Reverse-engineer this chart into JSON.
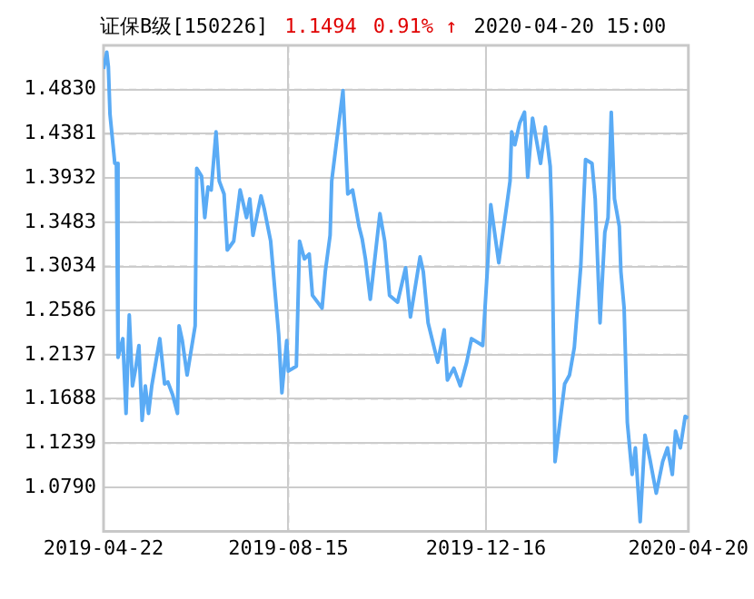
{
  "chart_data": {
    "type": "line",
    "title": "证保B级[150226]",
    "annotations": [
      "1.1494",
      "0.91% ↑",
      "2020-04-20 15:00"
    ],
    "x": [
      "2019-04-22",
      "2019-04-24",
      "2019-04-25",
      "2019-04-26",
      "2019-04-29",
      "2019-04-30",
      "2019-05-01",
      "2019-05-04",
      "2019-05-06",
      "2019-05-08",
      "2019-05-10",
      "2019-05-12",
      "2019-05-14",
      "2019-05-16",
      "2019-05-18",
      "2019-05-20",
      "2019-05-22",
      "2019-05-27",
      "2019-05-30",
      "2019-06-01",
      "2019-06-04",
      "2019-06-07",
      "2019-06-08",
      "2019-06-10",
      "2019-06-13",
      "2019-06-18",
      "2019-06-19",
      "2019-06-22",
      "2019-06-24",
      "2019-06-26",
      "2019-06-28",
      "2019-07-01",
      "2019-07-03",
      "2019-07-06",
      "2019-07-08",
      "2019-07-12",
      "2019-07-16",
      "2019-07-20",
      "2019-07-22",
      "2019-07-24",
      "2019-07-29",
      "2019-07-31",
      "2019-08-04",
      "2019-08-09",
      "2019-08-11",
      "2019-08-14",
      "2019-08-15",
      "2019-08-20",
      "2019-08-22",
      "2019-08-25",
      "2019-08-28",
      "2019-08-30",
      "2019-09-05",
      "2019-09-07",
      "2019-09-10",
      "2019-09-11",
      "2019-09-14",
      "2019-09-18",
      "2019-09-21",
      "2019-09-24",
      "2019-09-28",
      "2019-09-30",
      "2019-10-02",
      "2019-10-05",
      "2019-10-11",
      "2019-10-14",
      "2019-10-17",
      "2019-10-22",
      "2019-10-27",
      "2019-10-30",
      "2019-11-05",
      "2019-11-07",
      "2019-11-10",
      "2019-11-16",
      "2019-11-20",
      "2019-11-22",
      "2019-11-26",
      "2019-11-30",
      "2019-12-04",
      "2019-12-07",
      "2019-12-14",
      "2019-12-17",
      "2019-12-19",
      "2019-12-24",
      "2019-12-29",
      "2019-12-31",
      "2020-01-01",
      "2020-01-03",
      "2020-01-06",
      "2020-01-09",
      "2020-01-11",
      "2020-01-14",
      "2020-01-19",
      "2020-01-22",
      "2020-01-25",
      "2020-01-26",
      "2020-01-28",
      "2020-02-03",
      "2020-02-06",
      "2020-02-09",
      "2020-02-13",
      "2020-02-16",
      "2020-02-20",
      "2020-02-22",
      "2020-02-25",
      "2020-02-28",
      "2020-03-01",
      "2020-03-03",
      "2020-03-05",
      "2020-03-08",
      "2020-03-09",
      "2020-03-11",
      "2020-03-13",
      "2020-03-16",
      "2020-03-18",
      "2020-03-21",
      "2020-03-24",
      "2020-03-27",
      "2020-03-31",
      "2020-04-04",
      "2020-04-07",
      "2020-04-10",
      "2020-04-12",
      "2020-04-15",
      "2020-04-18",
      "2020-04-20"
    ],
    "series": [
      {
        "color": "#5aabf5",
        "values": [
          1.504,
          1.521,
          1.506,
          1.458,
          1.408,
          1.408,
          1.211,
          1.23,
          1.154,
          1.254,
          1.182,
          1.2,
          1.223,
          1.147,
          1.182,
          1.154,
          1.182,
          1.23,
          1.184,
          1.186,
          1.173,
          1.154,
          1.243,
          1.228,
          1.193,
          1.243,
          1.403,
          1.395,
          1.353,
          1.384,
          1.381,
          1.44,
          1.39,
          1.377,
          1.32,
          1.329,
          1.381,
          1.353,
          1.372,
          1.335,
          1.375,
          1.362,
          1.329,
          1.234,
          1.175,
          1.228,
          1.197,
          1.202,
          1.329,
          1.311,
          1.316,
          1.274,
          1.261,
          1.298,
          1.335,
          1.39,
          1.43,
          1.482,
          1.377,
          1.381,
          1.344,
          1.331,
          1.311,
          1.27,
          1.357,
          1.329,
          1.274,
          1.267,
          1.302,
          1.252,
          1.313,
          1.298,
          1.246,
          1.206,
          1.239,
          1.188,
          1.2,
          1.182,
          1.206,
          1.23,
          1.223,
          1.303,
          1.366,
          1.307,
          1.366,
          1.39,
          1.44,
          1.427,
          1.449,
          1.46,
          1.394,
          1.454,
          1.408,
          1.445,
          1.405,
          1.353,
          1.105,
          1.184,
          1.193,
          1.221,
          1.303,
          1.412,
          1.408,
          1.372,
          1.246,
          1.338,
          1.353,
          1.46,
          1.372,
          1.344,
          1.298,
          1.261,
          1.145,
          1.092,
          1.119,
          1.044,
          1.132,
          1.108,
          1.073,
          1.105,
          1.119,
          1.092,
          1.136,
          1.119,
          1.151,
          1.1494
        ]
      }
    ],
    "xlim": [
      "2019-04-22",
      "2020-04-20"
    ],
    "xticks": [
      "2019-04-22",
      "2019-08-15",
      "2019-12-16",
      "2020-04-20"
    ],
    "ylim": [
      1.0341,
      1.5279
    ],
    "yticks": [
      {
        "value": 1.079,
        "label": "1.0790"
      },
      {
        "value": 1.1239,
        "label": "1.1239"
      },
      {
        "value": 1.1688,
        "label": "1.1688"
      },
      {
        "value": 1.2137,
        "label": "1.2137"
      },
      {
        "value": 1.2586,
        "label": "1.2586"
      },
      {
        "value": 1.3034,
        "label": "1.3034"
      },
      {
        "value": 1.3483,
        "label": "1.3483"
      },
      {
        "value": 1.3932,
        "label": "1.3932"
      },
      {
        "value": 1.4381,
        "label": "1.4381"
      },
      {
        "value": 1.483,
        "label": "1.4830"
      }
    ],
    "grid": true,
    "legend": false
  }
}
